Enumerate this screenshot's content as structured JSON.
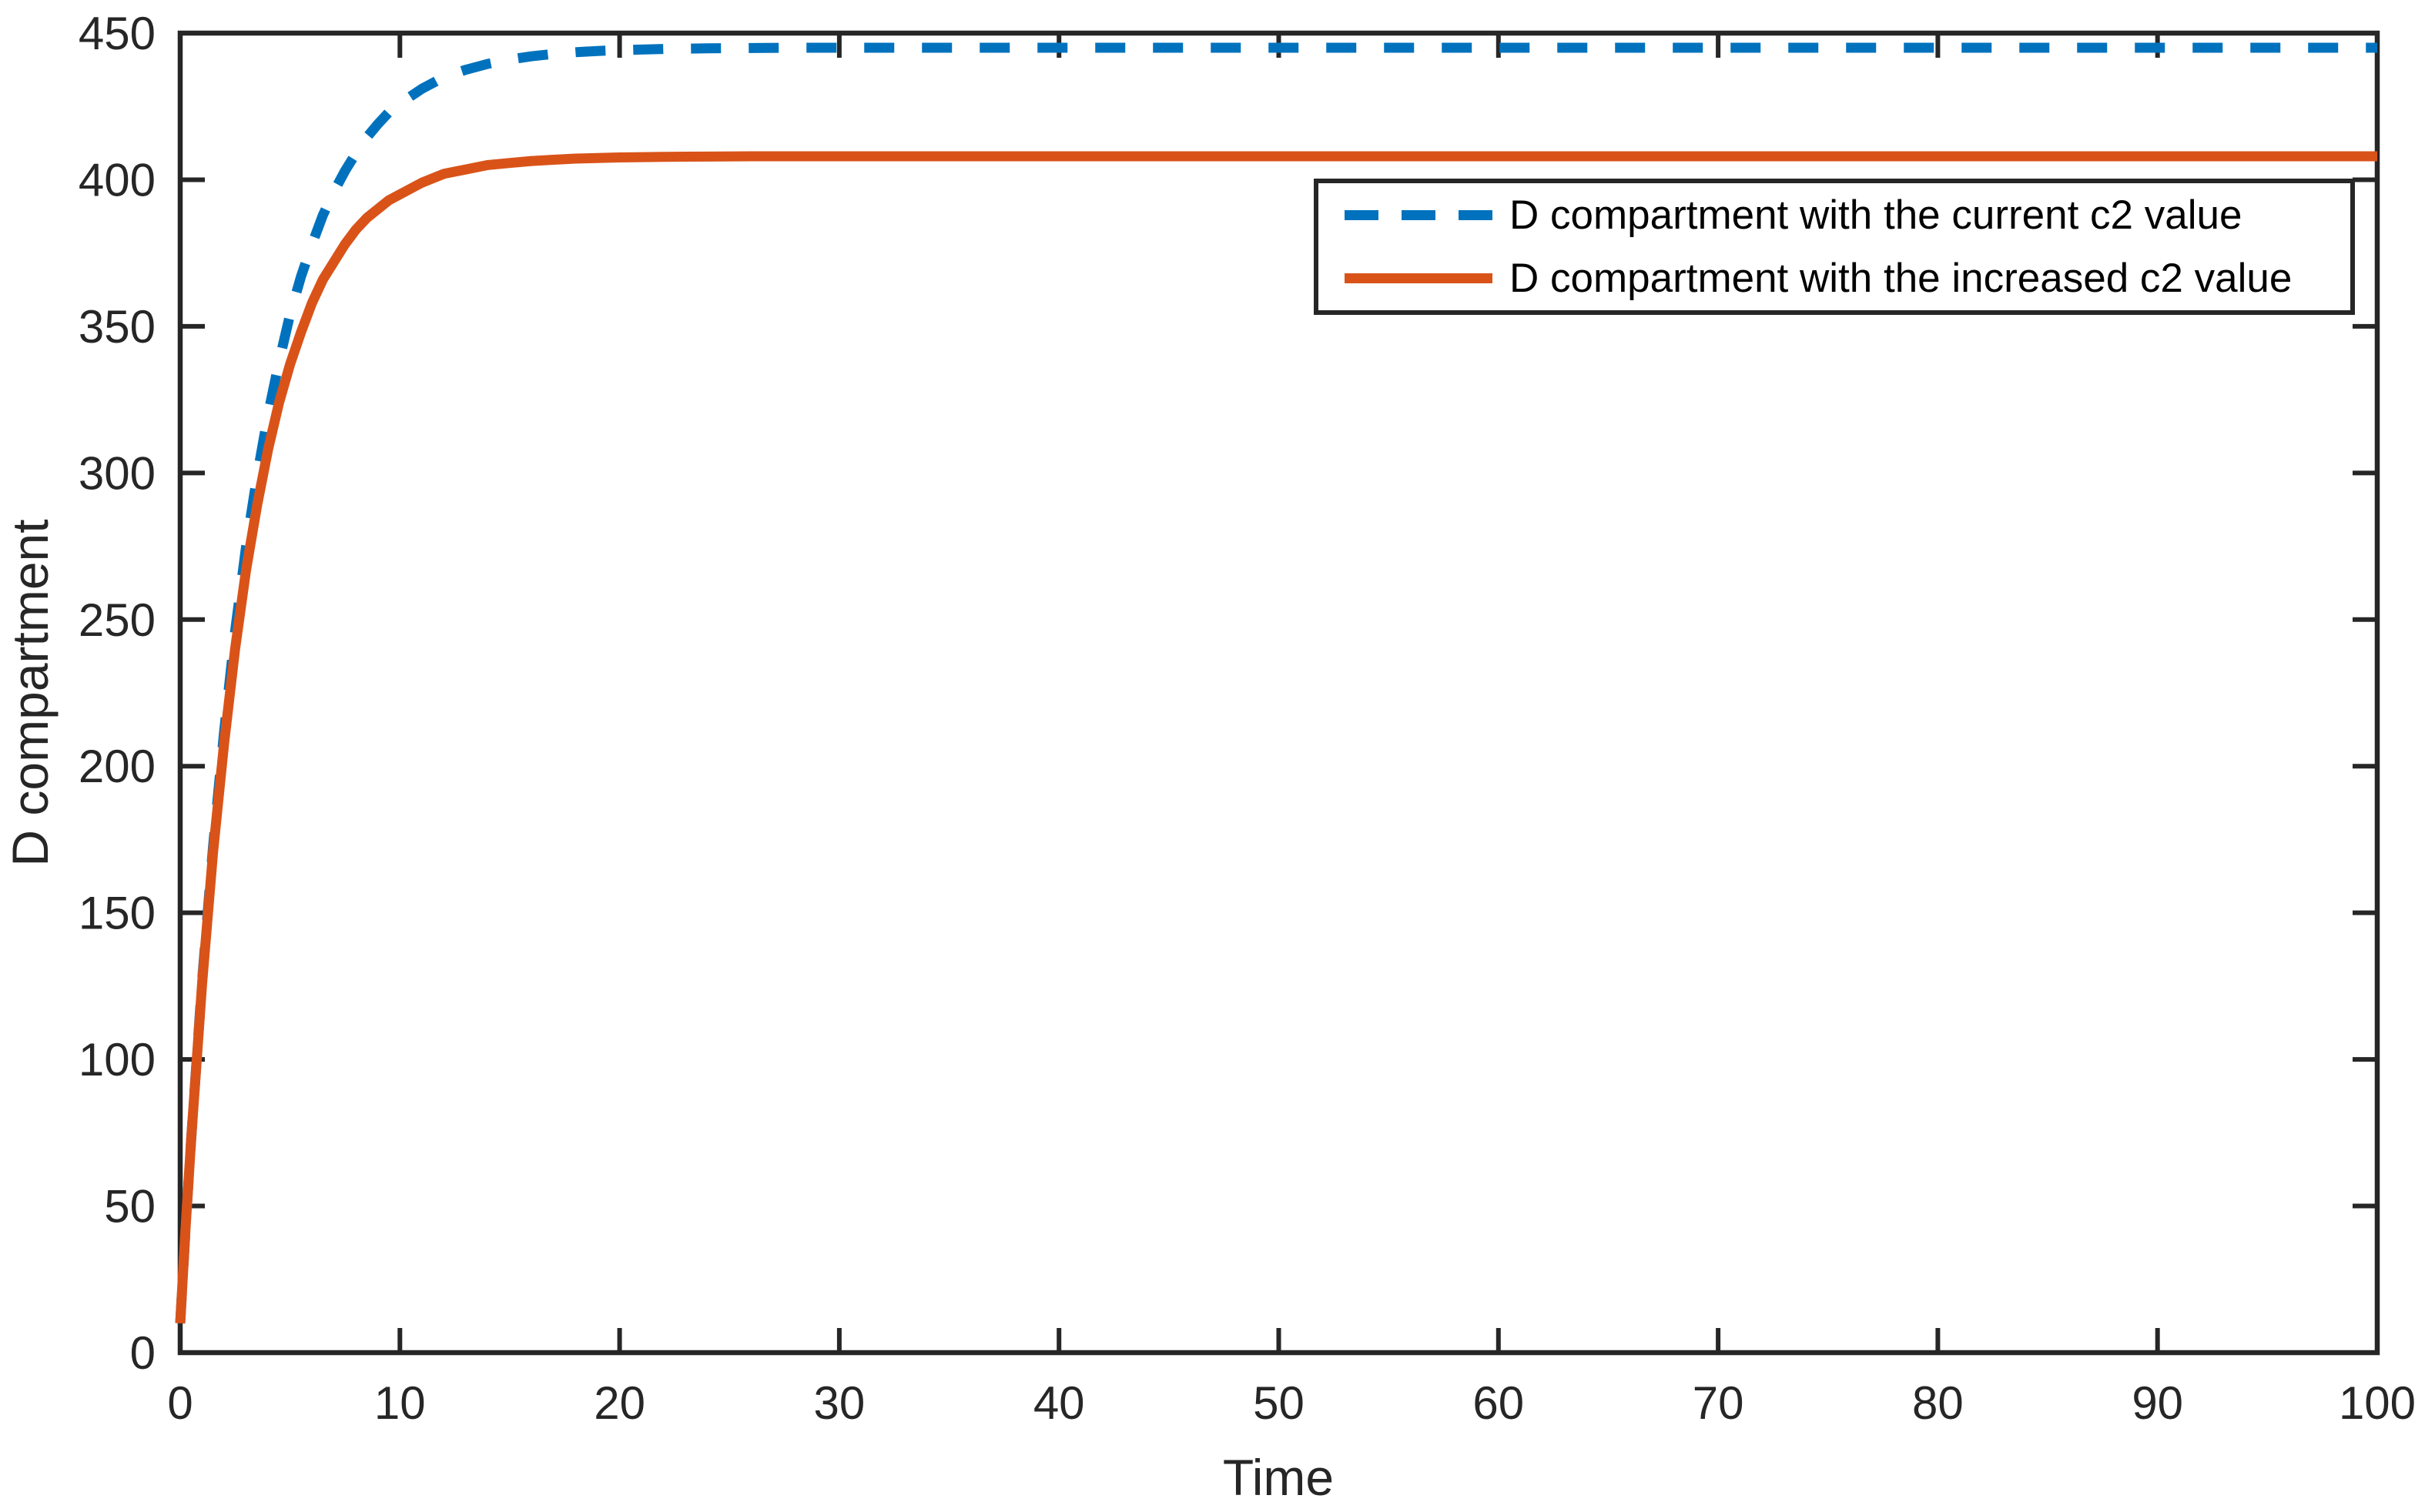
{
  "chart_data": {
    "type": "line",
    "title": "",
    "xlabel": "Time",
    "ylabel": "D compartment",
    "xlim": [
      0,
      100
    ],
    "ylim": [
      0,
      450
    ],
    "xticks": [
      0,
      10,
      20,
      30,
      40,
      50,
      60,
      70,
      80,
      90,
      100
    ],
    "yticks": [
      0,
      50,
      100,
      150,
      200,
      250,
      300,
      350,
      400,
      450
    ],
    "grid": false,
    "box": true,
    "tick_direction": "in",
    "legend_position": "upper-right-inside",
    "axis_color": "#262626",
    "background_color": "#ffffff",
    "x": [
      0,
      0.25,
      0.5,
      1,
      1.5,
      2,
      2.5,
      3,
      3.5,
      4,
      4.5,
      5,
      5.5,
      6,
      6.5,
      7,
      7.5,
      8,
      8.5,
      9,
      9.5,
      10,
      11,
      12,
      13,
      14,
      15,
      16,
      17,
      18,
      19,
      20,
      22,
      24,
      26,
      28,
      30,
      35,
      40,
      45,
      50,
      55,
      60,
      65,
      70,
      75,
      80,
      85,
      90,
      95,
      100
    ],
    "series": [
      {
        "name": "D compartment with the current c2 value",
        "color": "#0072BD",
        "style": "dashed",
        "line_width": 13,
        "asymptote": 445,
        "values": [
          10,
          43,
          73,
          127,
          173,
          212,
          246,
          275,
          299,
          320,
          338,
          354,
          367,
          378,
          388,
          396,
          403,
          409,
          414.5,
          419,
          423,
          426,
          431,
          435,
          437.5,
          439.5,
          441,
          442.1,
          442.9,
          443.5,
          443.9,
          444.2,
          444.6,
          444.8,
          444.9,
          445,
          445,
          445,
          445,
          445,
          445,
          445,
          445,
          445,
          445,
          445,
          445,
          445,
          445,
          445,
          445
        ]
      },
      {
        "name": "D compartment with the increased c2 value",
        "color": "#D95319",
        "style": "solid",
        "line_width": 13,
        "asymptote": 408,
        "values": [
          10,
          43,
          73,
          126,
          171,
          208,
          240,
          267,
          289,
          308,
          324,
          337,
          348,
          358,
          366,
          372,
          378,
          383,
          387,
          390,
          393,
          395,
          399,
          402,
          403.5,
          405,
          405.7,
          406.4,
          406.8,
          407.2,
          407.4,
          407.6,
          407.8,
          407.9,
          408,
          408,
          408,
          408,
          408,
          408,
          408,
          408,
          408,
          408,
          408,
          408,
          408,
          408,
          408,
          408,
          408
        ]
      }
    ]
  }
}
